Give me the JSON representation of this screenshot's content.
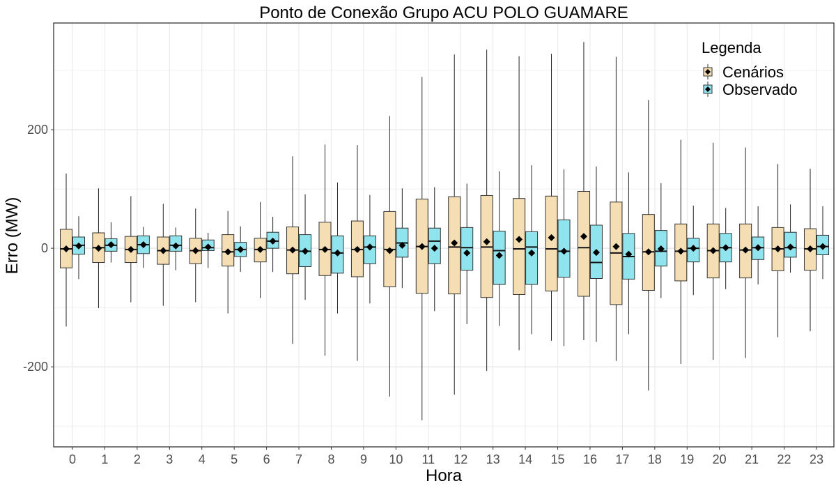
{
  "chart_data": {
    "type": "boxplot",
    "title": "Ponto de Conexão Grupo ACU POLO GUAMARE",
    "xlabel": "Hora",
    "ylabel": "Erro (MW)",
    "ylim": [
      -335,
      380
    ],
    "yticks": [
      -200,
      0,
      200
    ],
    "ytick_labels": [
      "-200",
      "0",
      "200"
    ],
    "grid": true,
    "legend": {
      "title": "Legenda",
      "placement": "top-right"
    },
    "categories": [
      "0",
      "1",
      "2",
      "3",
      "4",
      "5",
      "6",
      "7",
      "8",
      "9",
      "10",
      "11",
      "12",
      "13",
      "14",
      "15",
      "16",
      "17",
      "18",
      "19",
      "20",
      "21",
      "22",
      "23"
    ],
    "series": [
      {
        "name": "Cenários",
        "color": "#F5DEB3",
        "boxes": [
          {
            "min": -132,
            "q1": -33,
            "median": -1,
            "q3": 32,
            "max": 126,
            "mean": -1
          },
          {
            "min": -101,
            "q1": -24,
            "median": 1,
            "q3": 26,
            "max": 101,
            "mean": 0
          },
          {
            "min": -91,
            "q1": -24,
            "median": -2,
            "q3": 20,
            "max": 88,
            "mean": -2
          },
          {
            "min": -97,
            "q1": -27,
            "median": -4,
            "q3": 19,
            "max": 75,
            "mean": -4
          },
          {
            "min": -91,
            "q1": -26,
            "median": -4,
            "q3": 17,
            "max": 67,
            "mean": -4
          },
          {
            "min": -110,
            "q1": -30,
            "median": -6,
            "q3": 23,
            "max": 63,
            "mean": -6
          },
          {
            "min": -84,
            "q1": -23,
            "median": -2,
            "q3": 17,
            "max": 78,
            "mean": -2
          },
          {
            "min": -161,
            "q1": -43,
            "median": -3,
            "q3": 36,
            "max": 155,
            "mean": -3
          },
          {
            "min": -181,
            "q1": -46,
            "median": -2,
            "q3": 44,
            "max": 175,
            "mean": -2
          },
          {
            "min": -190,
            "q1": -48,
            "median": -2,
            "q3": 46,
            "max": 174,
            "mean": -2
          },
          {
            "min": -250,
            "q1": -65,
            "median": -2,
            "q3": 62,
            "max": 223,
            "mean": -4
          },
          {
            "min": -290,
            "q1": -76,
            "median": 3,
            "q3": 83,
            "max": 289,
            "mean": 3
          },
          {
            "min": -247,
            "q1": -77,
            "median": 2,
            "q3": 87,
            "max": 327,
            "mean": 9
          },
          {
            "min": -207,
            "q1": -83,
            "median": 2,
            "q3": 89,
            "max": 335,
            "mean": 11
          },
          {
            "min": -172,
            "q1": -78,
            "median": -1,
            "q3": 84,
            "max": 324,
            "mean": 15
          },
          {
            "min": -156,
            "q1": -72,
            "median": -1,
            "q3": 88,
            "max": 328,
            "mean": 18
          },
          {
            "min": -155,
            "q1": -81,
            "median": 1,
            "q3": 96,
            "max": 348,
            "mean": 20
          },
          {
            "min": -190,
            "q1": -95,
            "median": -8,
            "q3": 78,
            "max": 323,
            "mean": 3
          },
          {
            "min": -240,
            "q1": -71,
            "median": -6,
            "q3": 57,
            "max": 250,
            "mean": -6
          },
          {
            "min": -195,
            "q1": -55,
            "median": -5,
            "q3": 41,
            "max": 183,
            "mean": -5
          },
          {
            "min": -188,
            "q1": -50,
            "median": -4,
            "q3": 41,
            "max": 178,
            "mean": -4
          },
          {
            "min": -185,
            "q1": -50,
            "median": -3,
            "q3": 41,
            "max": 170,
            "mean": -3
          },
          {
            "min": -150,
            "q1": -38,
            "median": -1,
            "q3": 35,
            "max": 142,
            "mean": -1
          },
          {
            "min": -140,
            "q1": -37,
            "median": -1,
            "q3": 33,
            "max": 134,
            "mean": -1
          }
        ]
      },
      {
        "name": "Observado",
        "color": "#90E4EE",
        "boxes": [
          {
            "min": -52,
            "q1": -10,
            "median": 5,
            "q3": 19,
            "max": 54,
            "mean": 4
          },
          {
            "min": -24,
            "q1": -5,
            "median": 5,
            "q3": 16,
            "max": 44,
            "mean": 6
          },
          {
            "min": -33,
            "q1": -9,
            "median": 6,
            "q3": 21,
            "max": 36,
            "mean": 6
          },
          {
            "min": -37,
            "q1": -5,
            "median": 5,
            "q3": 21,
            "max": 35,
            "mean": 4
          },
          {
            "min": -33,
            "q1": -4,
            "median": 1,
            "q3": 14,
            "max": 26,
            "mean": 2
          },
          {
            "min": -40,
            "q1": -14,
            "median": -2,
            "q3": 10,
            "max": 37,
            "mean": -2
          },
          {
            "min": -40,
            "q1": 0,
            "median": 12,
            "q3": 27,
            "max": 53,
            "mean": 12
          },
          {
            "min": -87,
            "q1": -31,
            "median": -5,
            "q3": 23,
            "max": 91,
            "mean": -5
          },
          {
            "min": -110,
            "q1": -42,
            "median": -8,
            "q3": 21,
            "max": 111,
            "mean": -8
          },
          {
            "min": -93,
            "q1": -26,
            "median": 2,
            "q3": 21,
            "max": 90,
            "mean": 2
          },
          {
            "min": -67,
            "q1": -15,
            "median": 9,
            "q3": 34,
            "max": 101,
            "mean": 5
          },
          {
            "min": -106,
            "q1": -26,
            "median": 12,
            "q3": 34,
            "max": 103,
            "mean": 0
          },
          {
            "min": -128,
            "q1": -37,
            "median": 1,
            "q3": 35,
            "max": 109,
            "mean": -8
          },
          {
            "min": -131,
            "q1": -61,
            "median": -4,
            "q3": 29,
            "max": 130,
            "mean": -12
          },
          {
            "min": -145,
            "q1": -61,
            "median": 2,
            "q3": 28,
            "max": 140,
            "mean": -8
          },
          {
            "min": -165,
            "q1": -49,
            "median": -5,
            "q3": 48,
            "max": 133,
            "mean": -5
          },
          {
            "min": -158,
            "q1": -51,
            "median": -24,
            "q3": 39,
            "max": 138,
            "mean": -7
          },
          {
            "min": -145,
            "q1": -52,
            "median": -14,
            "q3": 25,
            "max": 128,
            "mean": -10
          },
          {
            "min": -84,
            "q1": -30,
            "median": -5,
            "q3": 30,
            "max": 110,
            "mean": -1
          },
          {
            "min": -79,
            "q1": -23,
            "median": 0,
            "q3": 17,
            "max": 72,
            "mean": 0
          },
          {
            "min": -69,
            "q1": -23,
            "median": 1,
            "q3": 25,
            "max": 68,
            "mean": 1
          },
          {
            "min": -61,
            "q1": -19,
            "median": 1,
            "q3": 19,
            "max": 71,
            "mean": 1
          },
          {
            "min": -41,
            "q1": -15,
            "median": 1,
            "q3": 27,
            "max": 74,
            "mean": 2
          },
          {
            "min": -52,
            "q1": -11,
            "median": 3,
            "q3": 22,
            "max": 71,
            "mean": 3
          }
        ]
      }
    ]
  }
}
